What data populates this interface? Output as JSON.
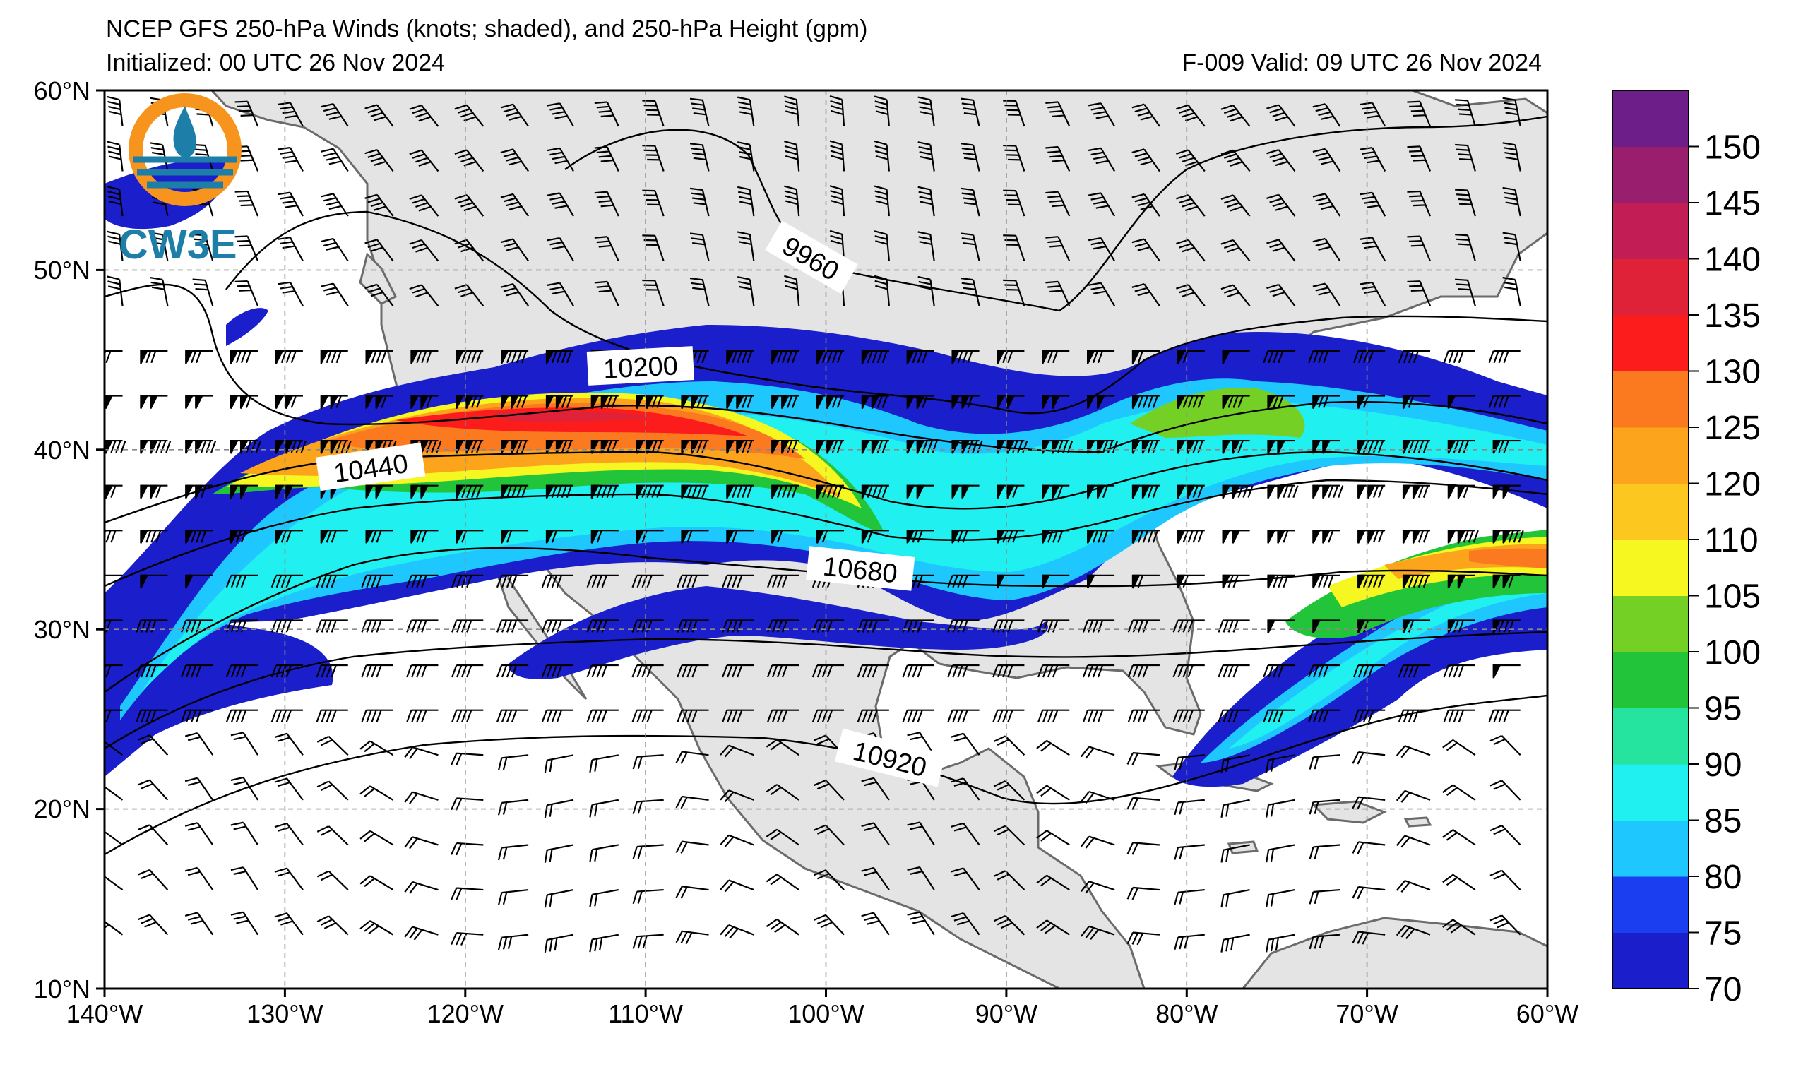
{
  "header": {
    "title": "NCEP GFS 250-hPa Winds (knots; shaded), and 250-hPa Height (gpm)",
    "initialized": "Initialized: 00 UTC 26 Nov 2024",
    "valid": "F-009  Valid: 09 UTC 26 Nov 2024"
  },
  "logo": {
    "text": "CW3E"
  },
  "map": {
    "lon_range": [
      -140,
      -60
    ],
    "lat_range": [
      10,
      60
    ],
    "x_ticks": [
      "140°W",
      "130°W",
      "120°W",
      "110°W",
      "100°W",
      "90°W",
      "80°W",
      "70°W",
      "60°W"
    ],
    "y_ticks": [
      "60°N",
      "50°N",
      "40°N",
      "30°N",
      "20°N",
      "10°N"
    ],
    "land_color": "#e6e6e6",
    "coast_color": "#6e6e6e"
  },
  "contours": [
    {
      "label": "9960"
    },
    {
      "label": "10200"
    },
    {
      "label": "10440"
    },
    {
      "label": "10680"
    },
    {
      "label": "10920"
    }
  ],
  "colorbar": {
    "levels": [
      70,
      75,
      80,
      85,
      90,
      95,
      100,
      105,
      110,
      120,
      125,
      130,
      135,
      140,
      145,
      150,
      155
    ],
    "tick_labels": [
      "70",
      "75",
      "80",
      "85",
      "90",
      "95",
      "100",
      "105",
      "110",
      "120",
      "125",
      "130",
      "135",
      "140",
      "145",
      "150"
    ],
    "colors": [
      "#1b1ecb",
      "#1a3ef0",
      "#1ec8ff",
      "#20f0f0",
      "#24e4a0",
      "#22c43a",
      "#74d024",
      "#f6f620",
      "#fcc820",
      "#fca41c",
      "#fb7a20",
      "#fc1c1c",
      "#e02238",
      "#c21e55",
      "#9a1e6e",
      "#6e1e88"
    ]
  }
}
